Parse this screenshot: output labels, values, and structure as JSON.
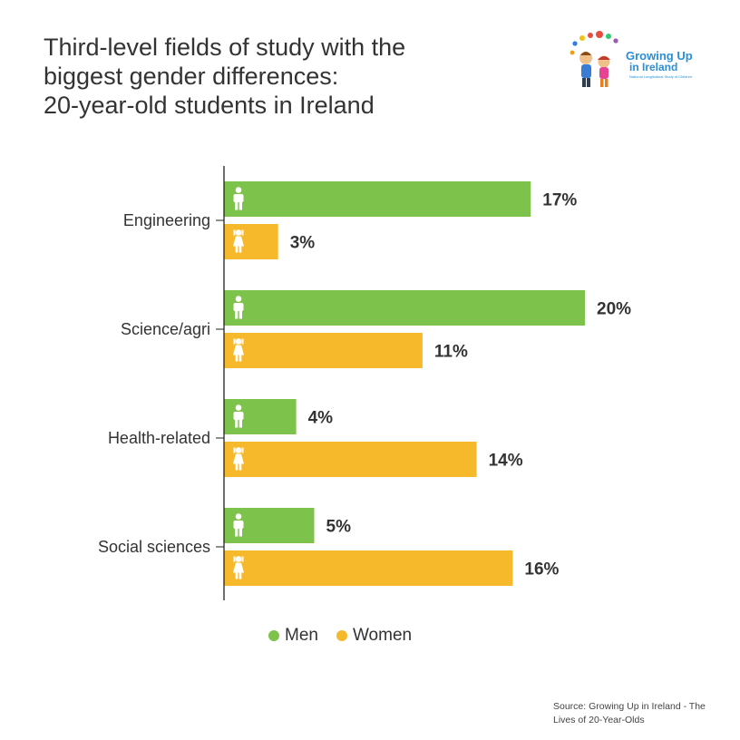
{
  "colors": {
    "men": "#7dc24b",
    "women": "#f6b92b",
    "text": "#333333",
    "axis": "#222222"
  },
  "logo": {
    "line1": "Growing Up",
    "line2": "in Ireland",
    "tagline": "National Longitudinal Study of Children"
  },
  "source": "Source: Growing Up in Ireland - The Lives of 20-Year-Olds",
  "chart_data": {
    "type": "bar",
    "orientation": "horizontal",
    "title": [
      "Third-level fields of study with the",
      "biggest gender differences:",
      "20-year-old students in Ireland"
    ],
    "categories": [
      "Engineering",
      "Science/agri",
      "Health-related",
      "Social sciences"
    ],
    "series": [
      {
        "name": "Men",
        "icon": "male-icon",
        "values": [
          17,
          20,
          4,
          5
        ],
        "labels": [
          "17%",
          "20%",
          "4%",
          "5%"
        ]
      },
      {
        "name": "Women",
        "icon": "female-icon",
        "values": [
          3,
          11,
          14,
          16
        ],
        "labels": [
          "3%",
          "11%",
          "14%",
          "16%"
        ]
      }
    ],
    "xlim": [
      0,
      20
    ],
    "grid": false,
    "legend": "bottom"
  }
}
